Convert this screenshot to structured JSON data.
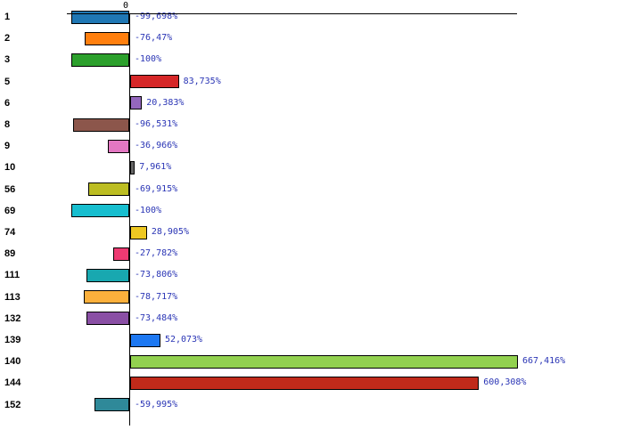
{
  "chart_data": {
    "type": "bar",
    "orientation": "horizontal",
    "title": "",
    "xlabel": "",
    "ylabel": "",
    "grid": false,
    "legend": false,
    "unit": "%",
    "categories": [
      "1",
      "2",
      "3",
      "5",
      "6",
      "8",
      "9",
      "10",
      "56",
      "69",
      "74",
      "89",
      "111",
      "113",
      "132",
      "139",
      "140",
      "144",
      "152"
    ],
    "values": [
      -99.698,
      -76.47,
      -100,
      83.735,
      20.383,
      -96.531,
      -36.966,
      7.961,
      -69.915,
      -100,
      28.905,
      -27.782,
      -73.806,
      -78.717,
      -73.484,
      52.073,
      667.416,
      600.308,
      -59.995
    ],
    "value_labels": [
      "-99,698%",
      "-76,47%",
      "-100%",
      "83,735%",
      "20,383%",
      "-96,531%",
      "-36,966%",
      "7,961%",
      "-69,915%",
      "-100%",
      "28,905%",
      "-27,782%",
      "-73,806%",
      "-78,717%",
      "-73,484%",
      "52,073%",
      "667,416%",
      "600,308%",
      "-59,995%"
    ],
    "colors": [
      "#1f77b4",
      "#ff7f0e",
      "#2ca02c",
      "#d62728",
      "#9467bd",
      "#8c564b",
      "#e377c2",
      "#666666",
      "#bcbd22",
      "#17becf",
      "#eec822",
      "#ee3a72",
      "#18a8b0",
      "#fcb03c",
      "#8a4fa5",
      "#1d78f2",
      "#92d14f",
      "#c02a1a",
      "#2f8999"
    ],
    "axis": {
      "zero_tick_label": "0",
      "xlim": [
        -107,
        667
      ]
    },
    "value_label_color": "#2a35b5"
  }
}
